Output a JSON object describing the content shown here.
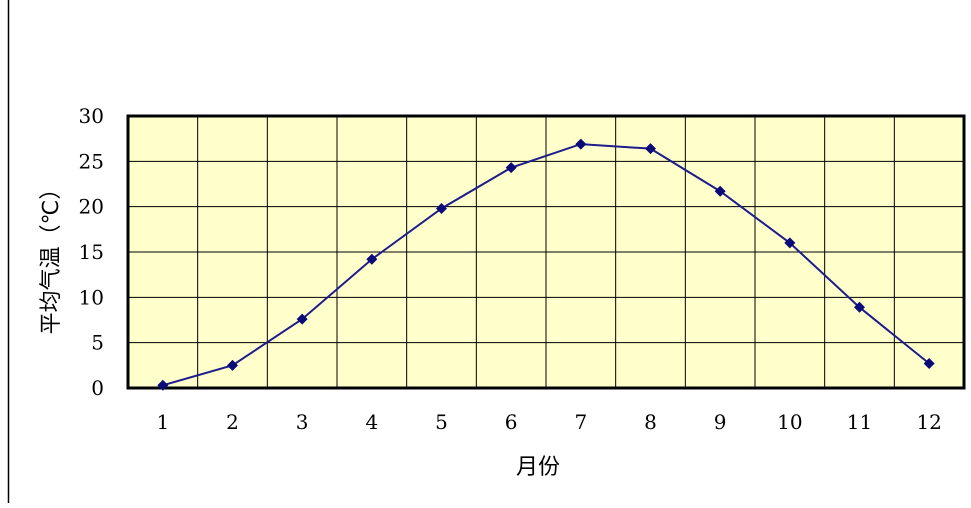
{
  "colors": {
    "plot_background": "#ffffcc",
    "line": "#1c1c8c",
    "marker": "#0a0a78",
    "grid": "#000000"
  },
  "chart_data": {
    "type": "line",
    "title": "",
    "xlabel": "月份",
    "ylabel": "平均气温（℃）",
    "categories": [
      "1",
      "2",
      "3",
      "4",
      "5",
      "6",
      "7",
      "8",
      "9",
      "10",
      "11",
      "12"
    ],
    "series": [
      {
        "values": [
          0.3,
          2.5,
          7.6,
          14.2,
          19.8,
          24.3,
          26.9,
          26.4,
          21.7,
          16.0,
          8.9,
          2.7
        ]
      }
    ],
    "ylim": [
      0,
      30
    ],
    "yticks": [
      "0",
      "5",
      "10",
      "15",
      "20",
      "25",
      "30"
    ],
    "grid": true,
    "marker": "diamond",
    "legend": "none"
  }
}
